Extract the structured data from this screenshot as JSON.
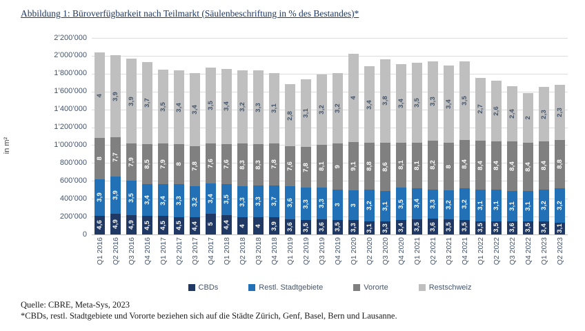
{
  "title": "Abbildung 1: Büroverfügbarkeit nach Teilmarkt (Säulenbeschriftung in % des Bestandes)*",
  "footer": {
    "source_line": "Quelle: CBRE, Meta-Sys, 2023",
    "footnote_line": "*CBDs, restl. Stadtgebiete und Vororte beziehen sich auf die Städte Zürich, Genf, Basel, Bern und Lausanne."
  },
  "chart_data": {
    "type": "bar",
    "stacked": true,
    "title": "Büroverfügbarkeit nach Teilmarkt",
    "bar_label_note": "Säulenbeschriftung in % des Bestandes",
    "xlabel": "",
    "ylabel": "in m²",
    "ylim": [
      0,
      2200000
    ],
    "ytick_step": 200000,
    "grid": true,
    "legend_position": "bottom",
    "categories": [
      "Q1 2016",
      "Q2 2016",
      "Q3 2016",
      "Q4 2016",
      "Q1 2017",
      "Q2 2017",
      "Q3 2017",
      "Q4 2017",
      "Q1 2018",
      "Q2 2018",
      "Q3 2018",
      "Q4 2018",
      "Q1 2019",
      "Q2 2019",
      "Q3 2019",
      "Q4 2019",
      "Q1 2020",
      "Q2 2020",
      "Q3 2020",
      "Q4 2020",
      "Q1 2021",
      "Q2 2021",
      "Q3 2021",
      "Q4 2021",
      "Q1 2022",
      "Q2 2022",
      "Q3 2022",
      "Q4 2022",
      "Q1 2023",
      "Q2 2023"
    ],
    "series": [
      {
        "name": "CBDs",
        "color": "#1f3864",
        "label_color": "#ffffff",
        "values_m2": [
          210000,
          230000,
          220000,
          205000,
          205000,
          195000,
          190000,
          230000,
          220000,
          195000,
          195000,
          190000,
          170000,
          160000,
          170000,
          165000,
          160000,
          145000,
          145000,
          160000,
          170000,
          175000,
          170000,
          165000,
          150000,
          150000,
          150000,
          150000,
          145000,
          135000
        ],
        "labels_pct": [
          "4,6",
          "4,9",
          "4,9",
          "4,5",
          "4,5",
          "4,5",
          "4,4",
          "5",
          "4,4",
          "4",
          "4",
          "3,9",
          "3,6",
          "3,5",
          "3,6",
          "3,5",
          "3,3",
          "3,1",
          "3,3",
          "3,4",
          "3,5",
          "3,6",
          "3,5",
          "3,5",
          "3,5",
          "3,5",
          "3,6",
          "3,5",
          "3,4",
          "3,1"
        ]
      },
      {
        "name": "Restl. Stadtgebiete",
        "color": "#2271b6",
        "label_color": "#ffffff",
        "values_m2": [
          410000,
          415000,
          380000,
          360000,
          355000,
          365000,
          350000,
          345000,
          345000,
          345000,
          350000,
          360000,
          370000,
          365000,
          355000,
          335000,
          335000,
          355000,
          345000,
          365000,
          350000,
          330000,
          325000,
          350000,
          350000,
          350000,
          340000,
          340000,
          360000,
          380000
        ],
        "labels_pct": [
          "3,9",
          "3,9",
          "3,5",
          "3,4",
          "3,4",
          "3,3",
          "3,2",
          "3,4",
          "3,5",
          "3,3",
          "3,3",
          "3,7",
          "3,6",
          "3,3",
          "3,3",
          "3",
          "3",
          "3,2",
          "3,1",
          "3,5",
          "3,4",
          "3,3",
          "3,2",
          "3,2",
          "3,1",
          "3,1",
          "3,1",
          "3,1",
          "3,2",
          "3,2"
        ]
      },
      {
        "name": "Vororte",
        "color": "#808080",
        "label_color": "#ffffff",
        "values_m2": [
          460000,
          440000,
          420000,
          450000,
          460000,
          455000,
          445000,
          445000,
          450000,
          480000,
          465000,
          470000,
          445000,
          455000,
          475000,
          520000,
          540000,
          530000,
          540000,
          505000,
          510000,
          545000,
          530000,
          545000,
          550000,
          545000,
          550000,
          535000,
          540000,
          545000
        ],
        "labels_pct": [
          "8",
          "7,7",
          "7,9",
          "8,5",
          "7,9",
          "8",
          "7,8",
          "7,6",
          "7,6",
          "8,3",
          "8,3",
          "7,8",
          "7,6",
          "7,8",
          "8,1",
          "9",
          "9,1",
          "8,8",
          "8,6",
          "8,1",
          "8,1",
          "8,2",
          "8",
          "8,4",
          "8,4",
          "8,4",
          "8,4",
          "8,4",
          "8,4",
          "8,8"
        ]
      },
      {
        "name": "Restschweiz",
        "color": "#bfbfbf",
        "label_color": "#44546a",
        "values_m2": [
          955000,
          925000,
          945000,
          915000,
          825000,
          820000,
          820000,
          850000,
          840000,
          820000,
          830000,
          790000,
          695000,
          760000,
          790000,
          785000,
          990000,
          850000,
          930000,
          880000,
          895000,
          885000,
          865000,
          880000,
          705000,
          675000,
          620000,
          560000,
          605000,
          615000
        ],
        "labels_pct": [
          "4",
          "3,9",
          "3,9",
          "3,7",
          "3,5",
          "3,4",
          "3,4",
          "3,5",
          "3,4",
          "3,2",
          "3,3",
          "3,1",
          "2,8",
          "3,1",
          "3,2",
          "3,2",
          "4",
          "3,4",
          "3,8",
          "3,4",
          "3,5",
          "3,3",
          "3,4",
          "3,5",
          "2,7",
          "2,6",
          "2,4",
          "2",
          "2,3",
          "2,3"
        ]
      }
    ]
  }
}
